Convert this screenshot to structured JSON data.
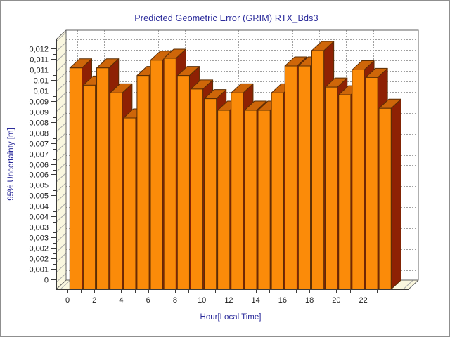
{
  "chart_data": {
    "type": "bar",
    "style": "3d-vertical-bars",
    "title": "Predicted Geometric Error (GRIM) RTX_Bds3",
    "xlabel": "Hour[Local Time]",
    "ylabel": "95% Uncertainty [m]",
    "categories": [
      0,
      1,
      2,
      3,
      4,
      5,
      6,
      7,
      8,
      9,
      10,
      11,
      12,
      13,
      14,
      15,
      16,
      17,
      18,
      19,
      20,
      21,
      22,
      23
    ],
    "values": [
      0.0115,
      0.0106,
      0.0115,
      0.0102,
      0.0089,
      0.0111,
      0.0119,
      0.012,
      0.0111,
      0.0104,
      0.0099,
      0.0093,
      0.0102,
      0.0093,
      0.0093,
      0.0102,
      0.0116,
      0.0116,
      0.0124,
      0.0105,
      0.0101,
      0.0114,
      0.011,
      0.0094
    ],
    "ylim": [
      0,
      0.012
    ],
    "y_tick_labels_top_to_bottom": [
      "0,012",
      "0,011",
      "0,011",
      "0,01",
      "0,01",
      "0,009",
      "0,009",
      "0,008",
      "0,008",
      "0,007",
      "0,007",
      "0,006",
      "0,006",
      "0,005",
      "0,005",
      "0,004",
      "0,004",
      "0,003",
      "0,003",
      "0,002",
      "0,002",
      "0,001",
      "0"
    ],
    "x_tick_labels": [
      "0",
      "2",
      "4",
      "6",
      "8",
      "10",
      "12",
      "14",
      "16",
      "18",
      "20",
      "22"
    ],
    "grid": true,
    "legend": "none",
    "colors": {
      "bar_front": "#fb8b09",
      "bar_top": "#ce6609",
      "bar_side": "#8e2104",
      "bar_outline": "#5a2d05",
      "wall": "#faf7df",
      "wall_hatch": "#ababab",
      "back_wall": "#ffffff",
      "gridline": "#a0a0a0",
      "axis_line": "#3a3a3a",
      "tick_text": "#1a1a1a",
      "title_text": "#2b2b9b",
      "frame_border": "#8f8f8f"
    }
  }
}
